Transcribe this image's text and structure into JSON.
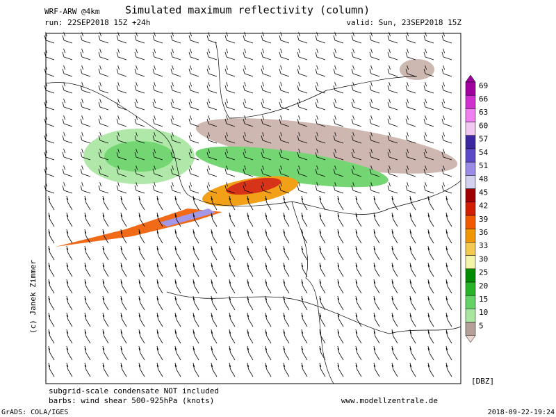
{
  "header": {
    "model": "WRF-ARW @4km",
    "title": "Simulated maximum reflectivity (column)",
    "run": "run: 22SEP2018 15Z +24h",
    "valid": "valid: Sun, 23SEP2018 15Z"
  },
  "side": "(c) Janek Zimmer",
  "footer": {
    "note1": "subgrid-scale condensate NOT included",
    "note2": "barbs: wind shear 500-925hPa (knots)",
    "site": "www.modellzentrale.de",
    "software": "GrADS: COLA/IGES",
    "timestamp": "2018-09-22-19:24"
  },
  "colorbar": {
    "unit": "[DBZ]",
    "levels": [
      {
        "label": "69",
        "color": "#a000a0"
      },
      {
        "label": "66",
        "color": "#d030d0"
      },
      {
        "label": "63",
        "color": "#f080f0"
      },
      {
        "label": "60",
        "color": "#f0c8f0"
      },
      {
        "label": "57",
        "color": "#3c28a0"
      },
      {
        "label": "54",
        "color": "#5a4ac8"
      },
      {
        "label": "51",
        "color": "#9a8ce6"
      },
      {
        "label": "48",
        "color": "#d2d2f0"
      },
      {
        "label": "45",
        "color": "#a00000"
      },
      {
        "label": "42",
        "color": "#d21e00"
      },
      {
        "label": "39",
        "color": "#f05a00"
      },
      {
        "label": "36",
        "color": "#f09600"
      },
      {
        "label": "33",
        "color": "#f5c850"
      },
      {
        "label": "30",
        "color": "#f5f5aa"
      },
      {
        "label": "25",
        "color": "#008c00"
      },
      {
        "label": "20",
        "color": "#28b428"
      },
      {
        "label": "15",
        "color": "#64d264"
      },
      {
        "label": "10",
        "color": "#a8e6a0"
      },
      {
        "label": "5",
        "color": "#b4a096"
      }
    ],
    "bottom_color": "#ecd8d0"
  }
}
